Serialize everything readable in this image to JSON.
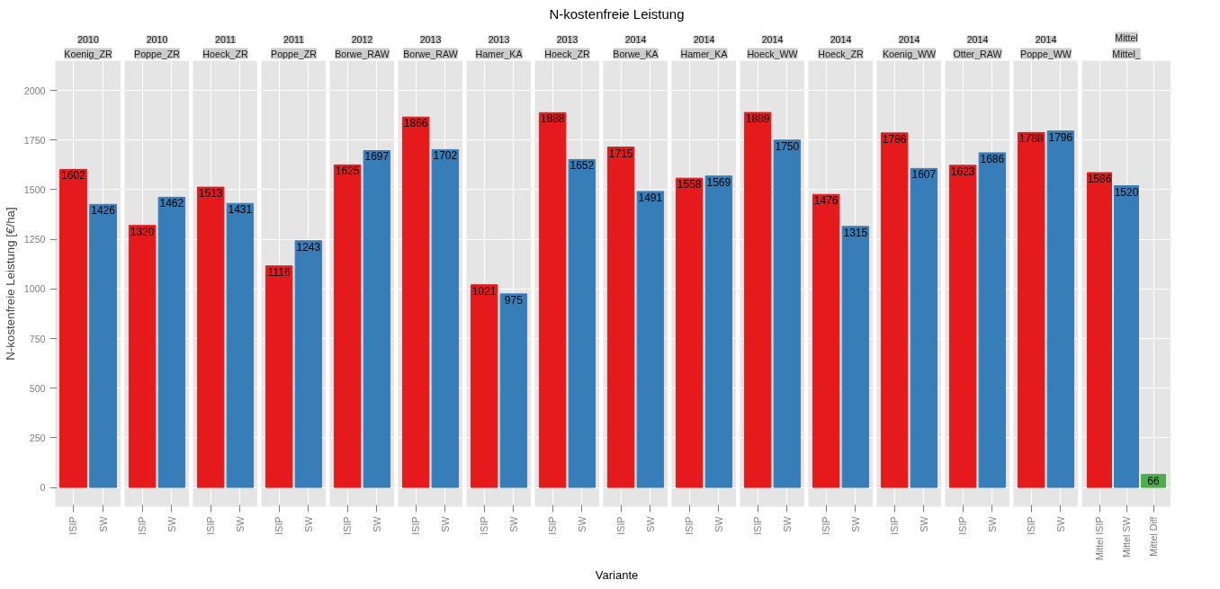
{
  "chart_data": [
    {
      "type": "bar",
      "title": "2010",
      "subtitle": "Koenig_ZR",
      "annotations": [
        "N-kostenfreie Leistung",
        "Variante"
      ],
      "ylabel": "N-kostenfreie Leistung [€/ha]",
      "categories": [
        "ISIP",
        "SW"
      ],
      "values": [
        1602,
        1426
      ],
      "colors": [
        "#e41a1c",
        "#377eb8"
      ],
      "ylim": [
        -97,
        2150
      ],
      "yticks": [
        0,
        250,
        500,
        750,
        1000,
        1250,
        1500,
        1750,
        2000
      ],
      "grid": true,
      "data_labels": true
    },
    {
      "type": "bar",
      "title": "2010",
      "subtitle": "Poppe_ZR",
      "categories": [
        "ISIP",
        "SW"
      ],
      "values": [
        1320,
        1462
      ],
      "colors": [
        "#e41a1c",
        "#377eb8"
      ],
      "ylim": [
        -97,
        2150
      ],
      "yticks": [
        0,
        250,
        500,
        750,
        1000,
        1250,
        1500,
        1750,
        2000
      ],
      "grid": true,
      "data_labels": true,
      "tick_labels": "x"
    },
    {
      "type": "bar",
      "title": "2011",
      "subtitle": "Hoeck_ZR",
      "categories": [
        "ISIP",
        "SW"
      ],
      "values": [
        1513,
        1431
      ],
      "colors": [
        "#e41a1c",
        "#377eb8"
      ],
      "ylim": [
        -97,
        2150
      ],
      "yticks": [
        0,
        250,
        500,
        750,
        1000,
        1250,
        1500,
        1750,
        2000
      ],
      "grid": true,
      "data_labels": true,
      "tick_labels": "x"
    },
    {
      "type": "bar",
      "title": "2011",
      "subtitle": "Poppe_ZR",
      "categories": [
        "ISIP",
        "SW"
      ],
      "values": [
        1116,
        1243
      ],
      "colors": [
        "#e41a1c",
        "#377eb8"
      ],
      "ylim": [
        -97,
        2150
      ],
      "yticks": [
        0,
        250,
        500,
        750,
        1000,
        1250,
        1500,
        1750,
        2000
      ],
      "grid": true,
      "data_labels": true,
      "tick_labels": "x"
    },
    {
      "type": "bar",
      "title": "2012",
      "subtitle": "Borwe_RAW",
      "categories": [
        "ISIP",
        "SW"
      ],
      "values": [
        1625,
        1697
      ],
      "colors": [
        "#e41a1c",
        "#377eb8"
      ],
      "ylim": [
        -97,
        2150
      ],
      "yticks": [
        0,
        250,
        500,
        750,
        1000,
        1250,
        1500,
        1750,
        2000
      ],
      "grid": true,
      "data_labels": true,
      "tick_labels": "x"
    },
    {
      "type": "bar",
      "title": "2013",
      "subtitle": "Borwe_RAW",
      "categories": [
        "ISIP",
        "SW"
      ],
      "values": [
        1866,
        1702
      ],
      "colors": [
        "#e41a1c",
        "#377eb8"
      ],
      "ylim": [
        -97,
        2150
      ],
      "yticks": [
        0,
        250,
        500,
        750,
        1000,
        1250,
        1500,
        1750,
        2000
      ],
      "grid": true,
      "data_labels": true,
      "tick_labels": "x"
    },
    {
      "type": "bar",
      "title": "2013",
      "subtitle": "Hamer_KA",
      "categories": [
        "ISIP",
        "SW"
      ],
      "values": [
        1021,
        975
      ],
      "colors": [
        "#e41a1c",
        "#377eb8"
      ],
      "ylim": [
        -97,
        2150
      ],
      "yticks": [
        0,
        250,
        500,
        750,
        1000,
        1250,
        1500,
        1750,
        2000
      ],
      "grid": true,
      "data_labels": true,
      "tick_labels": "x"
    },
    {
      "type": "bar",
      "title": "2013",
      "subtitle": "Hoeck_ZR",
      "categories": [
        "ISIP",
        "SW"
      ],
      "values": [
        1888,
        1652
      ],
      "colors": [
        "#e41a1c",
        "#377eb8"
      ],
      "ylim": [
        -97,
        2150
      ],
      "yticks": [
        0,
        250,
        500,
        750,
        1000,
        1250,
        1500,
        1750,
        2000
      ],
      "grid": true,
      "data_labels": true,
      "tick_labels": "x"
    },
    {
      "type": "bar",
      "title": "2014",
      "subtitle": "Borwe_KA",
      "categories": [
        "ISIP",
        "SW"
      ],
      "values": [
        1715,
        1491
      ],
      "colors": [
        "#e41a1c",
        "#377eb8"
      ],
      "ylim": [
        -97,
        2150
      ],
      "yticks": [
        0,
        250,
        500,
        750,
        1000,
        1250,
        1500,
        1750,
        2000
      ],
      "grid": true,
      "data_labels": true,
      "tick_labels": "x"
    },
    {
      "type": "bar",
      "title": "2014",
      "subtitle": "Hamer_KA",
      "categories": [
        "ISIP",
        "SW"
      ],
      "values": [
        1558,
        1569
      ],
      "colors": [
        "#e41a1c",
        "#377eb8"
      ],
      "ylim": [
        -97,
        2150
      ],
      "yticks": [
        0,
        250,
        500,
        750,
        1000,
        1250,
        1500,
        1750,
        2000
      ],
      "grid": true,
      "data_labels": true,
      "tick_labels": "x"
    },
    {
      "type": "bar",
      "title": "2014",
      "subtitle": "Hoeck_WW",
      "categories": [
        "ISIP",
        "SW"
      ],
      "values": [
        1889,
        1750
      ],
      "colors": [
        "#e41a1c",
        "#377eb8"
      ],
      "ylim": [
        -97,
        2150
      ],
      "yticks": [
        0,
        250,
        500,
        750,
        1000,
        1250,
        1500,
        1750,
        2000
      ],
      "grid": true,
      "data_labels": true,
      "tick_labels": "x"
    },
    {
      "type": "bar",
      "title": "2014",
      "subtitle": "Hoeck_ZR",
      "categories": [
        "ISIP",
        "SW"
      ],
      "values": [
        1476,
        1315
      ],
      "colors": [
        "#e41a1c",
        "#377eb8"
      ],
      "ylim": [
        -97,
        2150
      ],
      "yticks": [
        0,
        250,
        500,
        750,
        1000,
        1250,
        1500,
        1750,
        2000
      ],
      "grid": true,
      "data_labels": true,
      "tick_labels": "x"
    },
    {
      "type": "bar",
      "title": "2014",
      "subtitle": "Koenig_WW",
      "categories": [
        "ISIP",
        "SW"
      ],
      "values": [
        1786,
        1607
      ],
      "colors": [
        "#e41a1c",
        "#377eb8"
      ],
      "ylim": [
        -97,
        2150
      ],
      "yticks": [
        0,
        250,
        500,
        750,
        1000,
        1250,
        1500,
        1750,
        2000
      ],
      "grid": true,
      "data_labels": true,
      "tick_labels": "x"
    },
    {
      "type": "bar",
      "title": "2014",
      "subtitle": "Otter_RAW",
      "categories": [
        "ISIP",
        "SW"
      ],
      "values": [
        1623,
        1686
      ],
      "colors": [
        "#e41a1c",
        "#377eb8"
      ],
      "ylim": [
        -97,
        2150
      ],
      "yticks": [
        0,
        250,
        500,
        750,
        1000,
        1250,
        1500,
        1750,
        2000
      ],
      "grid": true,
      "data_labels": true,
      "tick_labels": "x"
    },
    {
      "type": "bar",
      "title": "2014",
      "subtitle": "Poppe_WW",
      "categories": [
        "ISIP",
        "SW"
      ],
      "values": [
        1788,
        1796
      ],
      "colors": [
        "#e41a1c",
        "#377eb8"
      ],
      "ylim": [
        -97,
        2150
      ],
      "yticks": [
        0,
        250,
        500,
        750,
        1000,
        1250,
        1500,
        1750,
        2000
      ],
      "grid": true,
      "data_labels": true,
      "tick_labels": "x"
    },
    {
      "type": "bar",
      "title": "Mittel",
      "subtitle": "Mittel_",
      "categories": [
        "Mittel ISIP",
        "Mittel SW",
        "Mittel Diff"
      ],
      "values": [
        1586,
        1520,
        66
      ],
      "colors": [
        "#e41a1c",
        "#377eb8",
        "#4daf4a"
      ],
      "ylim": [
        -97,
        2150
      ],
      "yticks": [
        0,
        250,
        500,
        750,
        1000,
        1250,
        1500,
        1750,
        2000
      ],
      "grid": true,
      "data_labels": true,
      "tick_labels": "x"
    }
  ]
}
